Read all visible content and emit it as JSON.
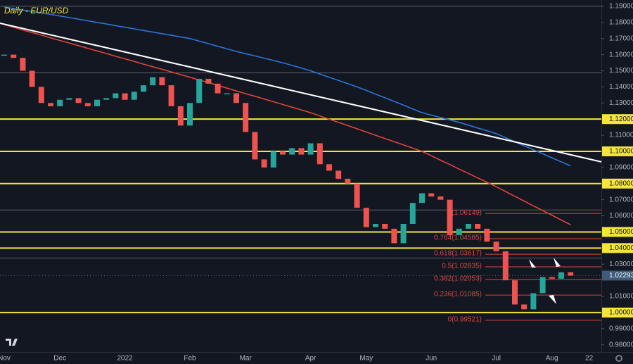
{
  "chart_data": {
    "type": "candlestick",
    "title": "Daily - EUR/USD",
    "categories": [
      "Nov",
      null,
      null,
      null,
      null,
      null,
      "Dec",
      null,
      null,
      null,
      null,
      null,
      null,
      "2022",
      null,
      null,
      null,
      null,
      null,
      null,
      "Feb",
      null,
      null,
      null,
      null,
      null,
      "Mar",
      null,
      null,
      null,
      null,
      null,
      null,
      "Apr",
      null,
      null,
      null,
      null,
      null,
      "May",
      null,
      null,
      null,
      null,
      null,
      null,
      "Jun",
      null,
      null,
      null,
      null,
      null,
      null,
      "Jul",
      null,
      null,
      null,
      null,
      null,
      "Aug",
      null,
      null,
      null,
      "22"
    ],
    "series": [
      {
        "up_color": "#26a69a",
        "down_color": "#ef5350",
        "values": [
          1.16,
          1.158,
          1.15,
          1.14,
          1.13,
          1.128,
          1.132,
          1.133,
          1.13,
          1.128,
          1.132,
          1.133,
          1.136,
          1.132,
          1.137,
          1.141,
          1.146,
          1.141,
          1.128,
          1.116,
          1.13,
          1.145,
          1.142,
          1.136,
          1.136,
          1.13,
          1.112,
          1.095,
          1.09,
          1.1,
          1.098,
          1.102,
          1.098,
          1.105,
          1.092,
          1.088,
          1.083,
          1.08,
          1.065,
          1.053,
          1.055,
          1.052,
          1.043,
          1.055,
          1.068,
          1.074,
          1.072,
          1.07,
          1.048,
          1.052,
          1.055,
          1.052,
          1.044,
          1.038,
          1.02,
          1.005,
          1.002,
          1.012,
          1.022,
          1.021,
          1.025,
          1.0229,
          null,
          null
        ]
      }
    ],
    "lines": [
      {
        "color": "#2a74d8",
        "values": [
          1.1895,
          1.1886,
          1.1877,
          1.1868,
          1.1859,
          1.185,
          1.184,
          1.183,
          1.182,
          1.181,
          1.18,
          1.179,
          1.178,
          1.177,
          1.176,
          1.175,
          1.174,
          1.173,
          1.172,
          1.171,
          1.17,
          1.1684,
          1.1668,
          1.1652,
          1.1636,
          1.162,
          1.1606,
          1.1592,
          1.1578,
          1.1564,
          1.155,
          1.1533,
          1.1517,
          1.15,
          1.148,
          1.146,
          1.144,
          1.142,
          1.14,
          1.1378,
          1.1355,
          1.1333,
          1.131,
          1.1287,
          1.1263,
          1.124,
          1.1225,
          1.121,
          1.1195,
          1.118,
          1.1163,
          1.1145,
          1.1128,
          1.111,
          1.1085,
          1.106,
          1.1035,
          1.101,
          1.0985,
          1.096,
          1.0935,
          1.091,
          null,
          null
        ]
      },
      {
        "color": "#e0443a",
        "values": [
          1.1786,
          1.177,
          1.1753,
          1.1737,
          1.1721,
          1.1704,
          1.1688,
          1.1672,
          1.1656,
          1.1639,
          1.1623,
          1.1607,
          1.159,
          1.1574,
          1.1558,
          1.1541,
          1.1525,
          1.1509,
          1.1493,
          1.1476,
          1.146,
          1.1443,
          1.1426,
          1.1409,
          1.1392,
          1.1375,
          1.1358,
          1.1342,
          1.1325,
          1.1308,
          1.1291,
          1.1274,
          1.1257,
          1.124,
          1.122,
          1.12,
          1.118,
          1.116,
          1.114,
          1.112,
          1.11,
          1.108,
          1.106,
          1.104,
          1.102,
          1.1,
          1.0973,
          1.0945,
          1.0918,
          1.089,
          1.0863,
          1.0835,
          1.0808,
          1.078,
          1.0751,
          1.0721,
          1.0692,
          1.0662,
          1.0633,
          1.0604,
          1.0574,
          1.0545,
          null,
          null
        ]
      }
    ],
    "trendline": {
      "color": "#ffffff",
      "start": 1.1795,
      "end": 1.0935
    },
    "ylim": [
      0.9755,
      1.1939
    ],
    "yticks": [
      {
        "value": 1.19,
        "label": "1.19000"
      },
      {
        "value": 1.18,
        "label": "1.18000"
      },
      {
        "value": 1.17,
        "label": "1.17000"
      },
      {
        "value": 1.16,
        "label": "1.16000"
      },
      {
        "value": 1.15,
        "label": "1.15000"
      },
      {
        "value": 1.14,
        "label": "1.14000"
      },
      {
        "value": 1.13,
        "label": "1.13000"
      },
      {
        "value": 1.11,
        "label": "1.11000"
      },
      {
        "value": 1.09,
        "label": "1.09000"
      },
      {
        "value": 1.07,
        "label": "1.07000"
      },
      {
        "value": 1.06,
        "label": "1.06000"
      },
      {
        "value": 1.03,
        "label": "1.03000"
      },
      {
        "value": 1.01,
        "label": "1.01000"
      },
      {
        "value": 0.99,
        "label": "0.99000"
      },
      {
        "value": 0.98,
        "label": "0.98000"
      }
    ],
    "levels": {
      "color": "#f5e43a",
      "items": [
        {
          "value": 1.12,
          "label": "1.12000"
        },
        {
          "value": 1.1,
          "label": "1.10000"
        },
        {
          "value": 1.08,
          "label": "1.08000"
        },
        {
          "value": 1.05,
          "label": "1.05000"
        },
        {
          "value": 1.04,
          "label": "1.04000"
        },
        {
          "value": 1.0,
          "label": "1.00000"
        }
      ]
    },
    "gray_lines": [
      1.19,
      1.1487,
      1.0636,
      1.0338
    ],
    "last_price": {
      "value": 1.02293,
      "label": "1.02293"
    },
    "fib": {
      "color": "#e0443a",
      "items": [
        {
          "value": 1.06149,
          "label": "1(1.06149)"
        },
        {
          "value": 1.04585,
          "label": "0.764(1.04585)"
        },
        {
          "value": 1.03617,
          "label": "0.618(1.03617)"
        },
        {
          "value": 1.02835,
          "label": "0.5(1.02835)"
        },
        {
          "value": 1.02053,
          "label": "0.382(1.02053)"
        },
        {
          "value": 1.01085,
          "label": "0.236(1.01085)"
        },
        {
          "value": 0.99521,
          "label": "0(0.99521)"
        }
      ]
    }
  }
}
